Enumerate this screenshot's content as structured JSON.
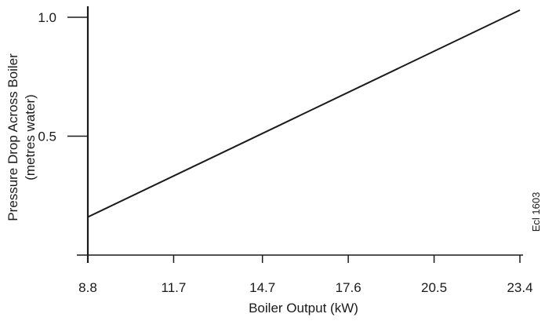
{
  "chart_data": {
    "type": "line",
    "title": "",
    "xlabel": "Boiler Output (kW)",
    "ylabel_line1": "Pressure Drop Across Boiler",
    "ylabel_line2": "(metres water)",
    "x_ticks": [
      8.8,
      11.7,
      14.7,
      17.6,
      20.5,
      23.4
    ],
    "x_tick_labels": [
      "8.8",
      "11.7",
      "14.7",
      "17.6",
      "20.5",
      "23.4"
    ],
    "y_ticks": [
      0.5,
      1.0
    ],
    "y_tick_labels": [
      "0.5",
      "1.0"
    ],
    "xlim": [
      8.8,
      23.4
    ],
    "ylim": [
      0,
      1.0
    ],
    "grid": false,
    "series": [
      {
        "values": [
          {
            "x": 8.8,
            "y": 0.16
          },
          {
            "x": 23.4,
            "y": 1.03
          }
        ]
      }
    ],
    "annotation": "Ecl 1603"
  }
}
